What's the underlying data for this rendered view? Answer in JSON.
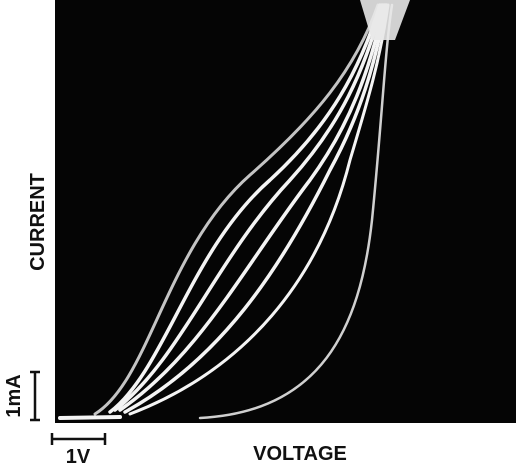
{
  "figure": {
    "y_label": "CURRENT",
    "x_label": "VOLTAGE",
    "y_scale_label": "1mA",
    "x_scale_label": "1V"
  }
}
